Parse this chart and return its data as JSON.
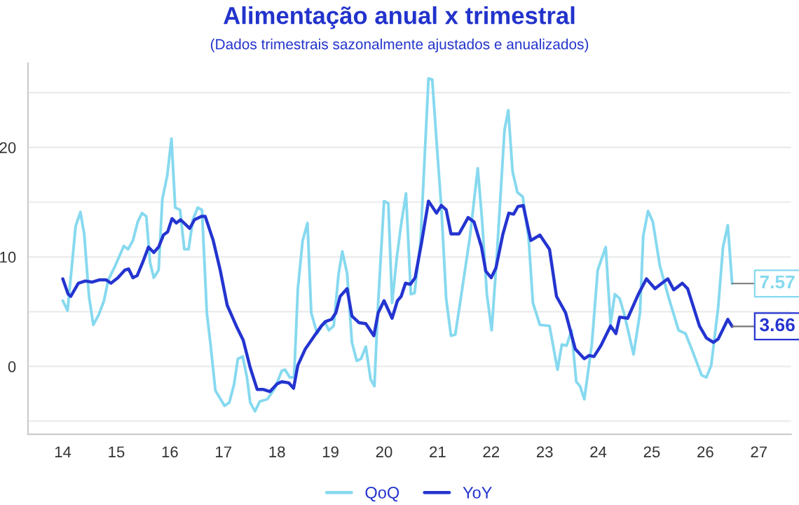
{
  "chart_data": {
    "type": "line",
    "title": "Alimentação anual x trimestral",
    "subtitle": "(Dados trimestrais sazonalmente ajustados e anualizados)",
    "xlim": [
      13.35,
      27.6
    ],
    "xticks": [
      14,
      15,
      16,
      17,
      18,
      19,
      20,
      21,
      22,
      23,
      24,
      25,
      26,
      27
    ],
    "ylim": [
      -6.2,
      27.7
    ],
    "yticks": [
      {
        "value": -5,
        "label": null
      },
      0,
      {
        "value": 5,
        "label": null
      },
      10,
      {
        "value": 15,
        "label": null
      },
      20,
      {
        "value": 25,
        "label": null
      }
    ],
    "grid": "y",
    "legend": "bottom",
    "line_style": "solid",
    "marker": "none",
    "series": [
      {
        "name": "QoQ",
        "color": "#86d9ef",
        "x": [
          14.0,
          14.09,
          14.24,
          14.33,
          14.4,
          14.49,
          14.57,
          14.67,
          14.77,
          14.85,
          14.98,
          15.14,
          15.22,
          15.31,
          15.4,
          15.48,
          15.56,
          15.63,
          15.7,
          15.79,
          15.86,
          15.95,
          16.03,
          16.1,
          16.19,
          16.27,
          16.35,
          16.43,
          16.52,
          16.6,
          16.69,
          16.76,
          16.85,
          17.02,
          17.11,
          17.2,
          17.27,
          17.36,
          17.44,
          17.5,
          17.59,
          17.68,
          17.82,
          17.96,
          18.09,
          18.15,
          18.24,
          18.32,
          18.39,
          18.48,
          18.57,
          18.64,
          18.75,
          18.89,
          18.97,
          19.06,
          19.15,
          19.22,
          19.31,
          19.4,
          19.49,
          19.57,
          19.66,
          19.75,
          19.82,
          19.89,
          20.0,
          20.08,
          20.15,
          20.24,
          20.32,
          20.41,
          20.5,
          20.57,
          20.68,
          20.76,
          20.83,
          20.9,
          20.98,
          21.07,
          21.16,
          21.25,
          21.33,
          21.46,
          21.6,
          21.75,
          21.83,
          21.92,
          22.01,
          22.1,
          22.25,
          22.32,
          22.4,
          22.49,
          22.59,
          22.7,
          22.78,
          22.91,
          23.09,
          23.24,
          23.32,
          23.41,
          23.5,
          23.59,
          23.66,
          23.74,
          23.88,
          23.99,
          24.14,
          24.23,
          24.31,
          24.4,
          24.49,
          24.66,
          24.78,
          24.84,
          24.93,
          25.02,
          25.15,
          25.32,
          25.5,
          25.63,
          25.76,
          25.93,
          26.02,
          26.11,
          26.24,
          26.33,
          26.42,
          26.5
        ],
        "values": [
          6.0,
          5.1,
          12.8,
          14.1,
          12.1,
          6.4,
          3.8,
          4.7,
          6.0,
          7.9,
          9.2,
          11.0,
          10.7,
          11.5,
          13.2,
          14.0,
          13.7,
          9.5,
          8.1,
          8.8,
          15.3,
          17.4,
          20.8,
          14.5,
          14.3,
          10.7,
          10.7,
          13.4,
          14.5,
          14.3,
          4.9,
          2.0,
          -2.2,
          -3.6,
          -3.3,
          -1.6,
          0.7,
          0.9,
          -1.0,
          -3.3,
          -4.1,
          -3.2,
          -3.0,
          -2.0,
          -0.4,
          -0.3,
          -1.0,
          -1.0,
          7.1,
          11.5,
          13.1,
          4.9,
          3.0,
          4.1,
          3.3,
          3.7,
          8.4,
          10.5,
          8.5,
          2.2,
          0.5,
          0.7,
          1.8,
          -1.2,
          -1.8,
          5.8,
          15.1,
          14.9,
          5.8,
          10.0,
          13.0,
          15.8,
          6.6,
          6.7,
          11.3,
          19.3,
          26.3,
          26.2,
          20.6,
          14.5,
          6.2,
          2.8,
          2.9,
          7.1,
          11.7,
          18.1,
          13.4,
          6.6,
          3.3,
          9.6,
          21.6,
          23.4,
          17.8,
          15.9,
          15.5,
          11.7,
          5.8,
          3.8,
          3.7,
          -0.3,
          2.0,
          1.9,
          3.3,
          -1.4,
          -1.8,
          -3.0,
          2.0,
          8.8,
          10.9,
          3.9,
          6.6,
          6.2,
          4.7,
          1.1,
          4.9,
          11.9,
          14.2,
          13.2,
          9.2,
          6.2,
          3.3,
          3.0,
          1.4,
          -0.8,
          -1.0,
          0.1,
          5.4,
          10.9,
          12.9,
          7.57
        ]
      },
      {
        "name": "YoY",
        "color": "#2434d0",
        "x": [
          14.0,
          14.1,
          14.15,
          14.29,
          14.42,
          14.55,
          14.68,
          14.81,
          14.9,
          15.03,
          15.16,
          15.23,
          15.31,
          15.39,
          15.5,
          15.6,
          15.7,
          15.79,
          15.88,
          15.96,
          16.04,
          16.12,
          16.2,
          16.37,
          16.46,
          16.59,
          16.66,
          16.81,
          16.94,
          17.07,
          17.24,
          17.37,
          17.5,
          17.63,
          17.74,
          17.87,
          18.0,
          18.09,
          18.22,
          18.31,
          18.39,
          18.53,
          18.7,
          18.83,
          18.91,
          19.02,
          19.1,
          19.18,
          19.31,
          19.4,
          19.53,
          19.66,
          19.81,
          19.89,
          20.0,
          20.15,
          20.25,
          20.32,
          20.4,
          20.49,
          20.58,
          20.7,
          20.83,
          20.98,
          21.07,
          21.16,
          21.25,
          21.4,
          21.57,
          21.68,
          21.82,
          21.9,
          22.0,
          22.09,
          22.22,
          22.33,
          22.42,
          22.5,
          22.6,
          22.74,
          22.91,
          23.09,
          23.22,
          23.39,
          23.57,
          23.74,
          23.83,
          23.92,
          24.05,
          24.23,
          24.33,
          24.4,
          24.55,
          24.75,
          24.9,
          25.06,
          25.19,
          25.3,
          25.41,
          25.57,
          25.67,
          25.89,
          26.02,
          26.15,
          26.24,
          26.42,
          26.5
        ],
        "values": [
          8.0,
          6.6,
          6.4,
          7.6,
          7.8,
          7.7,
          7.9,
          7.9,
          7.6,
          8.1,
          8.8,
          8.9,
          8.1,
          8.3,
          9.6,
          10.9,
          10.4,
          10.9,
          12.0,
          12.3,
          13.5,
          13.1,
          13.4,
          12.6,
          13.4,
          13.7,
          13.7,
          11.5,
          8.8,
          5.6,
          3.7,
          2.4,
          -0.1,
          -2.1,
          -2.1,
          -2.3,
          -1.6,
          -1.4,
          -1.5,
          -2.0,
          0.1,
          1.6,
          2.8,
          3.7,
          4.1,
          4.3,
          4.9,
          6.4,
          7.1,
          4.6,
          4.0,
          3.9,
          2.8,
          4.9,
          6.0,
          4.4,
          6.0,
          6.4,
          7.6,
          7.5,
          8.1,
          11.3,
          15.1,
          14.0,
          14.7,
          14.3,
          12.1,
          12.1,
          13.6,
          13.2,
          10.9,
          8.7,
          8.1,
          9.0,
          12.1,
          14.0,
          13.9,
          14.6,
          14.7,
          11.5,
          12.0,
          10.7,
          6.4,
          4.9,
          1.6,
          0.7,
          1.0,
          0.9,
          1.9,
          3.7,
          3.0,
          4.5,
          4.4,
          6.6,
          8.0,
          7.1,
          7.6,
          8.0,
          7.0,
          7.6,
          7.1,
          3.7,
          2.6,
          2.2,
          2.5,
          4.3,
          3.66
        ]
      }
    ],
    "annotations": [
      {
        "text": "7.57",
        "x": 26.5,
        "y": 7.57
      },
      {
        "text": "3.66",
        "x": 26.5,
        "y": 3.66
      }
    ]
  }
}
